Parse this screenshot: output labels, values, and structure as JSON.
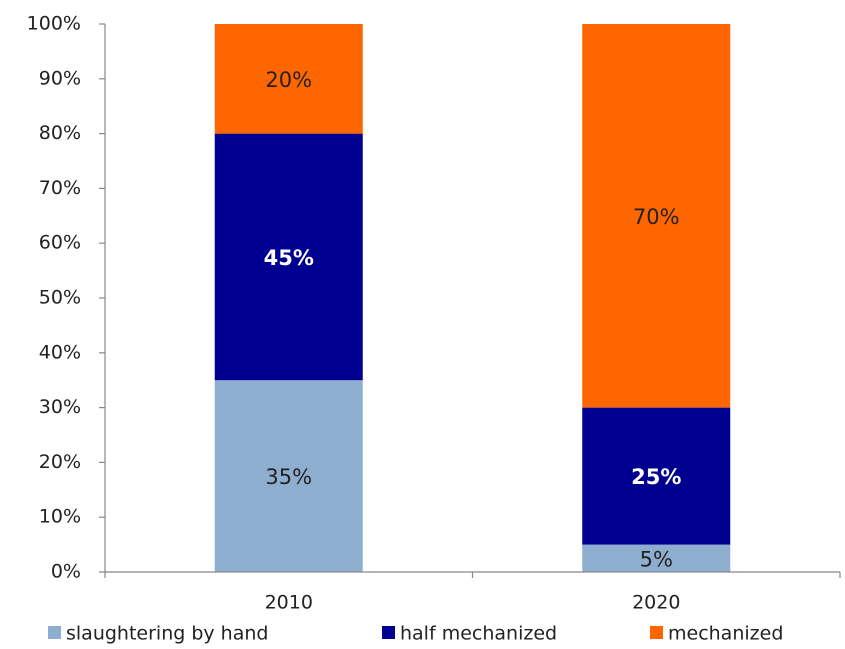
{
  "chart_data": {
    "type": "stacked_bar",
    "categories": [
      "2010",
      "2020"
    ],
    "series": [
      {
        "name": "slaughtering by hand",
        "color": "#8eaed0",
        "values": [
          35,
          5
        ],
        "value_labels": [
          "35%",
          "5%"
        ]
      },
      {
        "name": "half mechanized",
        "color": "#000090",
        "values": [
          45,
          25
        ],
        "value_labels": [
          "45%",
          "25%"
        ]
      },
      {
        "name": "mechanized",
        "color": "#ff6600",
        "values": [
          20,
          70
        ],
        "value_labels": [
          "20%",
          "70%"
        ]
      }
    ],
    "ylim": [
      0,
      100
    ],
    "yticks": [
      {
        "value": 0,
        "label": "0%"
      },
      {
        "value": 10,
        "label": "10%"
      },
      {
        "value": 20,
        "label": "20%"
      },
      {
        "value": 30,
        "label": "30%"
      },
      {
        "value": 40,
        "label": "40%"
      },
      {
        "value": 50,
        "label": "50%"
      },
      {
        "value": 60,
        "label": "60%"
      },
      {
        "value": 70,
        "label": "70%"
      },
      {
        "value": 80,
        "label": "80%"
      },
      {
        "value": 90,
        "label": "90%"
      },
      {
        "value": 100,
        "label": "100%"
      }
    ],
    "grid": false,
    "legend": "bottom"
  }
}
